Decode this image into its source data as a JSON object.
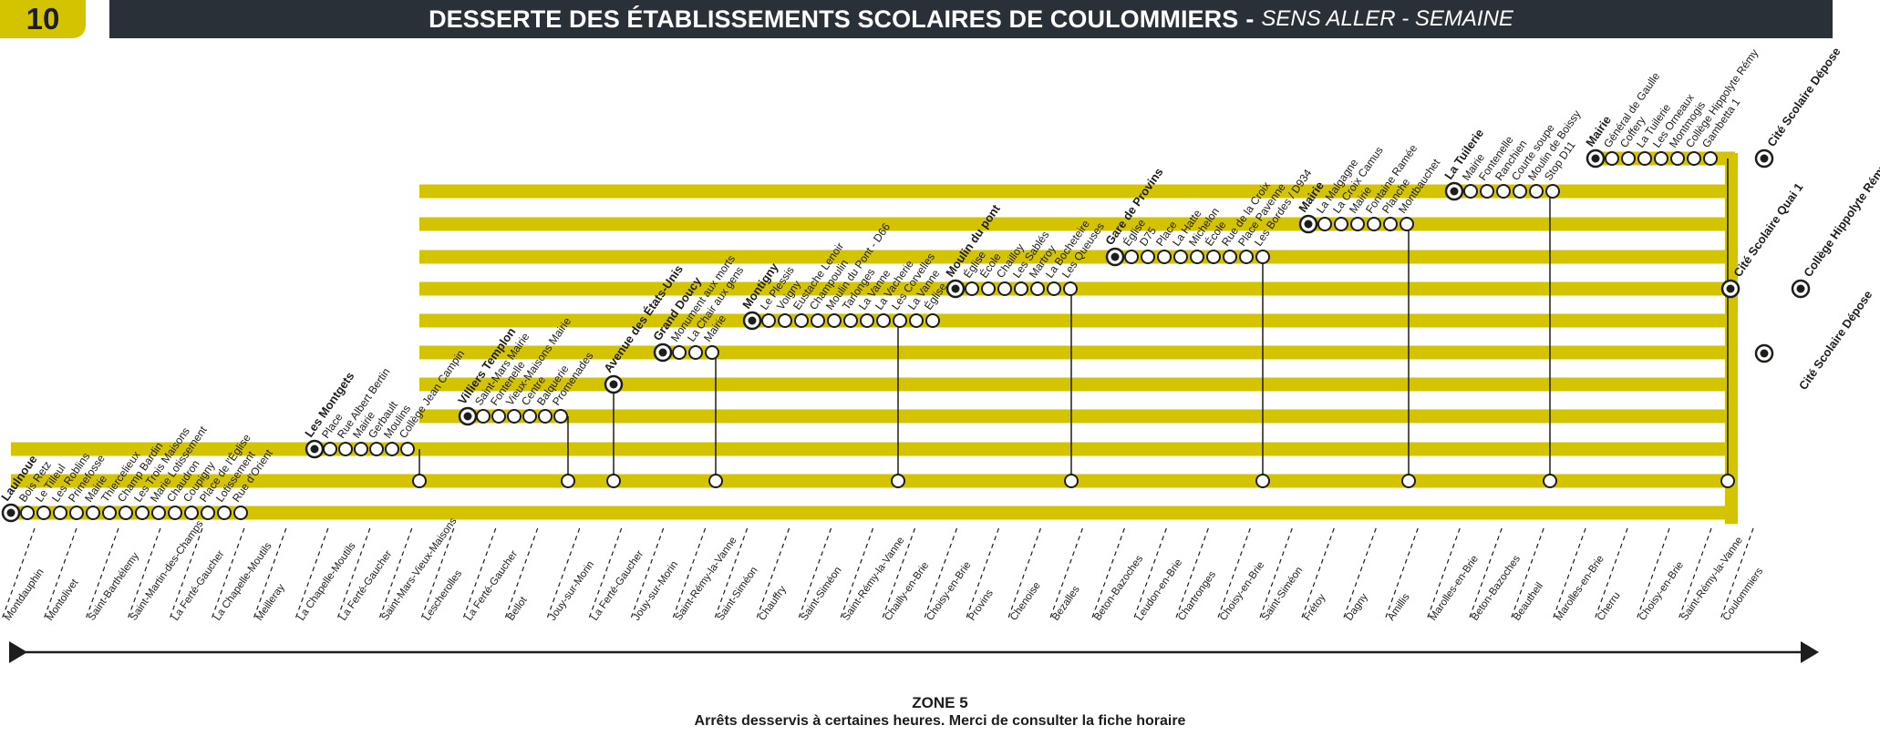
{
  "header": {
    "line_number": "10",
    "title": "DESSERTE DES ÉTABLISSEMENTS SCOLAIRES DE COULOMMIERS",
    "separator": "-",
    "subtitle": "SENS ALLER - SEMAINE"
  },
  "colors": {
    "band": "#d4c400",
    "title_bar": "#2a3037",
    "stop_outline": "#1d1d1b",
    "stop_fill": "#ffffff"
  },
  "routes": [
    {
      "start": "Laulnoue",
      "stops": [
        "Bois Retz",
        "Le Tilleul",
        "Les Roblins",
        "Primefosse",
        "Mairie",
        "Thiercelieux",
        "Champ Bardin",
        "Les Trois Maisons",
        "Marie Lotissement",
        "Chaudron",
        "Coupigny",
        "Place de l'Église",
        "Lotissement",
        "Rue d'Orient"
      ]
    },
    {
      "start": "Les Montgets",
      "stops": [
        "Place",
        "Rue Albert Bertin",
        "Mairie",
        "Gerbault",
        "Moulins",
        "Collège Jean Campin"
      ]
    },
    {
      "start": "Villiers Templon",
      "stops": [
        "Saint-Mars Mairie",
        "Fontenelle",
        "Vieux-Maisons Mairie",
        "Centre",
        "Balquerie",
        "Promenades"
      ]
    },
    {
      "start": "Avenue des États-Unis",
      "stops": []
    },
    {
      "start": "Grand Doucy",
      "stops": [
        "Monument aux morts",
        "La Chair aux gens",
        "Mairie"
      ]
    },
    {
      "start": "Montigny",
      "stops": [
        "Le Plessis",
        "Voigny",
        "Eustache Lenoir",
        "Champoulin",
        "Moulin du Pont - D66",
        "Tarlonges",
        "La Vanne",
        "La Vacherie",
        "Les Corvelles",
        "La Vanne",
        "Église"
      ]
    },
    {
      "start": "Moulin du pont",
      "stops": [
        "Église",
        "École",
        "Chailloy",
        "Les Sablés",
        "Martroy",
        "La Bocheteire",
        "Les Queuses"
      ]
    },
    {
      "start": "Gare de Provins",
      "stops": [
        "Église",
        "D75",
        "Place",
        "La Hatte",
        "Michelon",
        "École",
        "Rue de la Croix",
        "Place Pavenne",
        "Les Bordes / D934"
      ]
    },
    {
      "start": "Mairie",
      "stops": [
        "La Malgagne",
        "La Croix Camus",
        "Mairie",
        "Fontaine Ramée",
        "Planche",
        "Montbauchet"
      ]
    },
    {
      "start": "La Tuilerie",
      "stops": [
        "Mairie",
        "Fontenelle",
        "Ranchien",
        "Courte soupe",
        "Moulin de Boissy",
        "Stop D11"
      ]
    },
    {
      "start": "Mairie",
      "stops": [
        "Général de Gaulle",
        "Coffery",
        "La Tuilerie",
        "Les Orneaux",
        "Montmogis",
        "Collège Hippolyte Rémy",
        "Gambetta 1"
      ]
    }
  ],
  "terminals": [
    "Cité Scolaire Dépose",
    "Cité Scolaire Quai 1",
    "Collège Hippolyte Rémy",
    "Cité Scolaire Dépose"
  ],
  "communes": [
    "Montdauphin",
    "Montolivet",
    "Saint-Barthélemy",
    "Saint-Martin-des-Champs",
    "La Ferté-Gaucher",
    "La Chapelle-Moutils",
    "Meilleray",
    "La Chapelle-Moutils",
    "La Ferté-Gaucher",
    "Saint-Mars-Vieux-Maisons",
    "Lescherolles",
    "La Ferté-Gaucher",
    "Bellot",
    "Jouy-sur-Morin",
    "La Ferté-Gaucher",
    "Jouy-sur-Morin",
    "Saint-Rémy-la-Vanne",
    "Saint-Siméon",
    "Chauffry",
    "Saint-Siméon",
    "Saint-Rémy-la-Vanne",
    "Chailly-en-Brie",
    "Choisy-en-Brie",
    "Provins",
    "Chenoise",
    "Bezalles",
    "Beton-Bazoches",
    "Leudon-en-Brie",
    "Chartronges",
    "Choisy-en-Brie",
    "Saint-Siméon",
    "Frétoy",
    "Dagny",
    "Amillis",
    "Marolles-en-Brie",
    "Beton-Bazoches",
    "Beautheil",
    "Marolles-en-Brie",
    "Cherru",
    "Choisy-en-Brie",
    "Saint-Rémy-la-Vanne",
    "Coulommiers"
  ],
  "zone": {
    "label": "ZONE 5",
    "note": "Arrêts desservis à certaines heures. Merci de consulter la fiche horaire"
  }
}
